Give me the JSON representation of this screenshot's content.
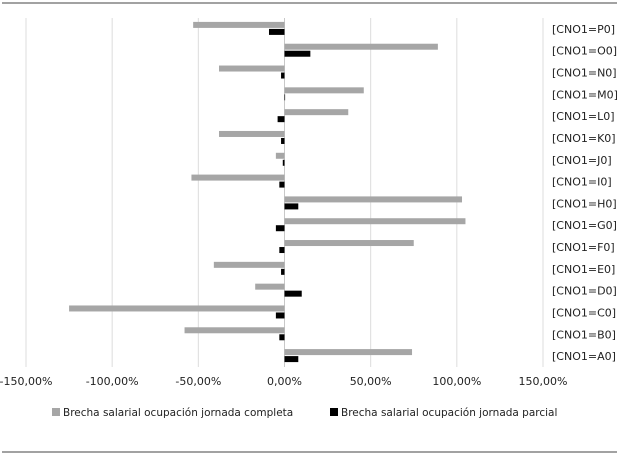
{
  "chart_data": {
    "type": "bar",
    "orientation": "horizontal",
    "title": "",
    "xlabel": "",
    "ylabel": "",
    "categories": [
      "[CNO1=P0]",
      "[CNO1=O0]",
      "[CNO1=N0]",
      "[CNO1=M0]",
      "[CNO1=L0]",
      "[CNO1=K0]",
      "[CNO1=J0]",
      "[CNO1=I0]",
      "[CNO1=H0]",
      "[CNO1=G0]",
      "[CNO1=F0]",
      "[CNO1=E0]",
      "[CNO1=D0]",
      "[CNO1=C0]",
      "[CNO1=B0]",
      "[CNO1=A0]"
    ],
    "series": [
      {
        "name": "Brecha salarial ocupación jornada completa",
        "color": "#a6a6a6",
        "values": [
          -53,
          89,
          -38,
          46,
          37,
          -38,
          -5,
          -54,
          103,
          105,
          75,
          -41,
          -17,
          -125,
          -58,
          74
        ]
      },
      {
        "name": "Brecha salarial ocupación jornada parcial",
        "color": "#000000",
        "values": [
          -9,
          15,
          -2,
          0,
          -4,
          -2,
          -1,
          -3,
          8,
          -5,
          -3,
          -2,
          10,
          -5,
          -3,
          8
        ]
      }
    ],
    "xlim": [
      -150,
      150
    ],
    "xticks": [
      -150,
      -100,
      -50,
      0,
      50,
      100,
      150
    ],
    "xtick_labels": [
      "-150,00%",
      "-100,00%",
      "-50,00%",
      "0,00%",
      "50,00%",
      "100,00%",
      "150,00%"
    ],
    "grid": true,
    "legend": "bottom"
  }
}
